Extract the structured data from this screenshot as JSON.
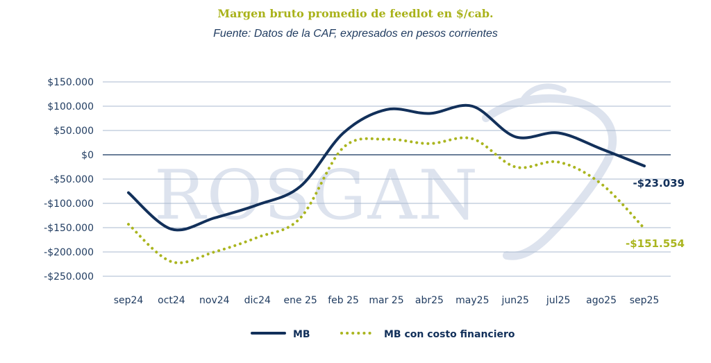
{
  "colors": {
    "title": "#a9b21a",
    "subtitle": "#1e3a5f",
    "mb": "#12305a",
    "mb_fin": "#aab51f",
    "grid": "#a9b9cf",
    "zero": "#12305a",
    "watermark": "#dde3ee"
  },
  "watermark_text": "ROSGAN",
  "chart_data": {
    "type": "line",
    "title": "Margen bruto promedio de feedlot en $/cab.",
    "subtitle": "Fuente: Datos de la CAF, expresados en pesos corrientes",
    "categories": [
      "sep24",
      "oct24",
      "nov24",
      "dic24",
      "ene 25",
      "feb 25",
      "mar 25",
      "abr25",
      "may25",
      "jun25",
      "jul25",
      "ago25",
      "sep25"
    ],
    "ylim": [
      -250000,
      150000
    ],
    "yticks": [
      150000,
      100000,
      50000,
      0,
      -50000,
      -100000,
      -150000,
      -200000,
      -250000
    ],
    "ytick_labels": [
      "$150.000",
      "$100.000",
      "$50.000",
      "$0",
      "-$50.000",
      "-$100.000",
      "-$150.000",
      "-$200.000",
      "-$250.000"
    ],
    "grid": "horizontal",
    "legend_position": "bottom",
    "series": [
      {
        "name": "MB",
        "style": "solid",
        "values": [
          -78000,
          -153000,
          -130000,
          -103000,
          -65000,
          45000,
          93000,
          85000,
          100000,
          37000,
          45000,
          12000,
          -23039
        ],
        "end_label": "-$23.039"
      },
      {
        "name": "MB con costo financiero",
        "style": "dotted",
        "values": [
          -143000,
          -220000,
          -200000,
          -170000,
          -130000,
          15000,
          32000,
          23000,
          33000,
          -25000,
          -15000,
          -60000,
          -151554
        ],
        "end_label": "-$151.554"
      }
    ]
  }
}
